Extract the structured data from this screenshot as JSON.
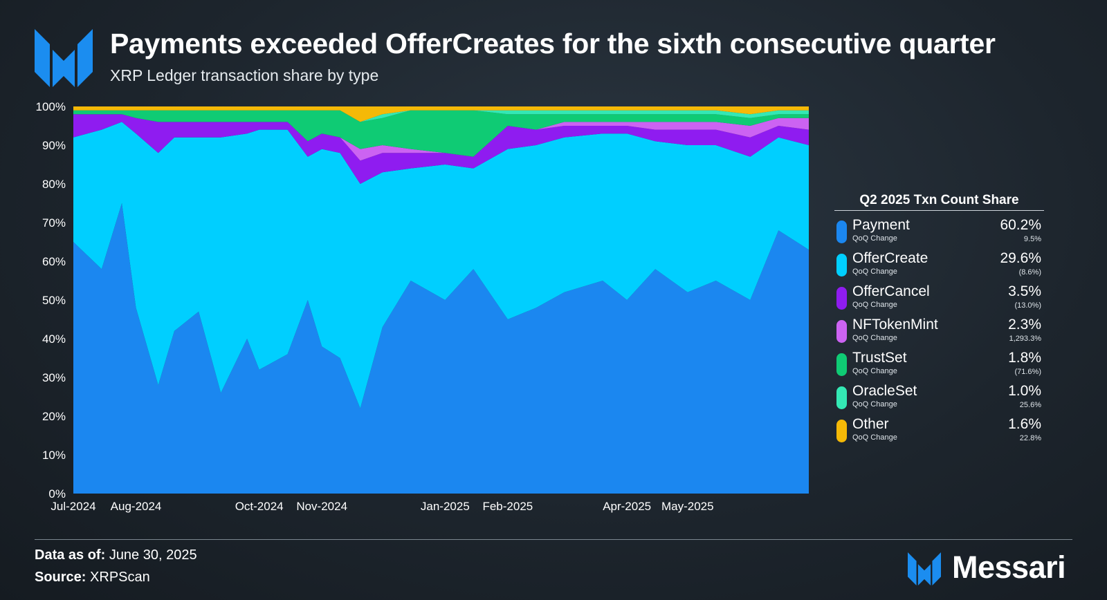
{
  "header": {
    "title": "Payments exceeded OfferCreates for the sixth consecutive quarter",
    "subtitle": "XRP Ledger transaction share by type",
    "logo_icon": "messari-m-icon"
  },
  "legend": {
    "title": "Q2 2025 Txn Count Share",
    "change_label": "QoQ Change",
    "items": [
      {
        "name": "Payment",
        "value": "60.2%",
        "change": "9.5%",
        "color": "#1b87f0"
      },
      {
        "name": "OfferCreate",
        "value": "29.6%",
        "change": "(8.6%)",
        "color": "#00cfff"
      },
      {
        "name": "OfferCancel",
        "value": "3.5%",
        "change": "(13.0%)",
        "color": "#8f1cf0"
      },
      {
        "name": "NFTokenMint",
        "value": "2.3%",
        "change": "1,293.3%",
        "color": "#cc63f2"
      },
      {
        "name": "TrustSet",
        "value": "1.8%",
        "change": "(71.6%)",
        "color": "#0fcb74"
      },
      {
        "name": "OracleSet",
        "value": "1.0%",
        "change": "25.6%",
        "color": "#34e8b4"
      },
      {
        "name": "Other",
        "value": "1.6%",
        "change": "22.8%",
        "color": "#f5b907"
      }
    ]
  },
  "footer": {
    "date_label": "Data as of:",
    "date_value": "June 30, 2025",
    "source_label": "Source:",
    "source_value": "XRPScan",
    "brand": "Messari"
  },
  "chart_data": {
    "type": "area",
    "stacked": true,
    "normalized": true,
    "x_range": [
      "2024-07-01",
      "2025-06-30"
    ],
    "ylim": [
      0,
      100
    ],
    "yticks": [
      "0%",
      "10%",
      "20%",
      "30%",
      "40%",
      "50%",
      "60%",
      "70%",
      "80%",
      "90%",
      "100%"
    ],
    "xticks": [
      {
        "date": "2024-07-01",
        "label": "Jul-2024"
      },
      {
        "date": "2024-08-01",
        "label": "Aug-2024"
      },
      {
        "date": "2024-10-01",
        "label": "Oct-2024"
      },
      {
        "date": "2024-11-01",
        "label": "Nov-2024"
      },
      {
        "date": "2025-01-01",
        "label": "Jan-2025"
      },
      {
        "date": "2025-02-01",
        "label": "Feb-2025"
      },
      {
        "date": "2025-04-01",
        "label": "Apr-2025"
      },
      {
        "date": "2025-05-01",
        "label": "May-2025"
      }
    ],
    "series_order": [
      "Payment",
      "OfferCreate",
      "OfferCancel",
      "NFTokenMint",
      "TrustSet",
      "OracleSet",
      "Other"
    ],
    "points": [
      {
        "date": "2024-07-01",
        "Payment": 65,
        "OfferCreate": 27,
        "OfferCancel": 6,
        "NFTokenMint": 0,
        "TrustSet": 1,
        "OracleSet": 0,
        "Other": 1
      },
      {
        "date": "2024-07-15",
        "Payment": 58,
        "OfferCreate": 36,
        "OfferCancel": 4,
        "NFTokenMint": 0,
        "TrustSet": 1,
        "OracleSet": 0,
        "Other": 1
      },
      {
        "date": "2024-07-25",
        "Payment": 75,
        "OfferCreate": 21,
        "OfferCancel": 2,
        "NFTokenMint": 0,
        "TrustSet": 1,
        "OracleSet": 0,
        "Other": 1
      },
      {
        "date": "2024-08-01",
        "Payment": 48,
        "OfferCreate": 45,
        "OfferCancel": 4,
        "NFTokenMint": 0,
        "TrustSet": 2,
        "OracleSet": 0,
        "Other": 1
      },
      {
        "date": "2024-08-12",
        "Payment": 28,
        "OfferCreate": 60,
        "OfferCancel": 8,
        "NFTokenMint": 0,
        "TrustSet": 3,
        "OracleSet": 0,
        "Other": 1
      },
      {
        "date": "2024-08-20",
        "Payment": 42,
        "OfferCreate": 50,
        "OfferCancel": 4,
        "NFTokenMint": 0,
        "TrustSet": 3,
        "OracleSet": 0,
        "Other": 1
      },
      {
        "date": "2024-09-01",
        "Payment": 47,
        "OfferCreate": 45,
        "OfferCancel": 4,
        "NFTokenMint": 0,
        "TrustSet": 3,
        "OracleSet": 0,
        "Other": 1
      },
      {
        "date": "2024-09-12",
        "Payment": 26,
        "OfferCreate": 66,
        "OfferCancel": 4,
        "NFTokenMint": 0,
        "TrustSet": 3,
        "OracleSet": 0,
        "Other": 1
      },
      {
        "date": "2024-09-25",
        "Payment": 40,
        "OfferCreate": 53,
        "OfferCancel": 3,
        "NFTokenMint": 0,
        "TrustSet": 3,
        "OracleSet": 0,
        "Other": 1
      },
      {
        "date": "2024-10-01",
        "Payment": 32,
        "OfferCreate": 62,
        "OfferCancel": 2,
        "NFTokenMint": 0,
        "TrustSet": 3,
        "OracleSet": 0,
        "Other": 1
      },
      {
        "date": "2024-10-15",
        "Payment": 36,
        "OfferCreate": 58,
        "OfferCancel": 2,
        "NFTokenMint": 0,
        "TrustSet": 3,
        "OracleSet": 0,
        "Other": 1
      },
      {
        "date": "2024-10-25",
        "Payment": 50,
        "OfferCreate": 37,
        "OfferCancel": 4,
        "NFTokenMint": 0,
        "TrustSet": 8,
        "OracleSet": 0,
        "Other": 1
      },
      {
        "date": "2024-11-01",
        "Payment": 38,
        "OfferCreate": 51,
        "OfferCancel": 4,
        "NFTokenMint": 0,
        "TrustSet": 6,
        "OracleSet": 0,
        "Other": 1
      },
      {
        "date": "2024-11-10",
        "Payment": 35,
        "OfferCreate": 53,
        "OfferCancel": 4,
        "NFTokenMint": 0,
        "TrustSet": 7,
        "OracleSet": 0,
        "Other": 1
      },
      {
        "date": "2024-11-20",
        "Payment": 22,
        "OfferCreate": 58,
        "OfferCancel": 6,
        "NFTokenMint": 3,
        "TrustSet": 7,
        "OracleSet": 0,
        "Other": 4
      },
      {
        "date": "2024-12-01",
        "Payment": 43,
        "OfferCreate": 40,
        "OfferCancel": 5,
        "NFTokenMint": 2,
        "TrustSet": 7,
        "OracleSet": 1,
        "Other": 2
      },
      {
        "date": "2024-12-15",
        "Payment": 55,
        "OfferCreate": 29,
        "OfferCancel": 4,
        "NFTokenMint": 1,
        "TrustSet": 10,
        "OracleSet": 0,
        "Other": 1
      },
      {
        "date": "2025-01-01",
        "Payment": 50,
        "OfferCreate": 35,
        "OfferCancel": 3,
        "NFTokenMint": 0,
        "TrustSet": 11,
        "OracleSet": 0,
        "Other": 1
      },
      {
        "date": "2025-01-15",
        "Payment": 58,
        "OfferCreate": 26,
        "OfferCancel": 3,
        "NFTokenMint": 0,
        "TrustSet": 12,
        "OracleSet": 0,
        "Other": 1
      },
      {
        "date": "2025-02-01",
        "Payment": 45,
        "OfferCreate": 44,
        "OfferCancel": 6,
        "NFTokenMint": 0,
        "TrustSet": 3,
        "OracleSet": 1,
        "Other": 1
      },
      {
        "date": "2025-02-15",
        "Payment": 48,
        "OfferCreate": 42,
        "OfferCancel": 4,
        "NFTokenMint": 0,
        "TrustSet": 4,
        "OracleSet": 1,
        "Other": 1
      },
      {
        "date": "2025-03-01",
        "Payment": 52,
        "OfferCreate": 40,
        "OfferCancel": 3,
        "NFTokenMint": 1,
        "TrustSet": 2,
        "OracleSet": 1,
        "Other": 1
      },
      {
        "date": "2025-03-20",
        "Payment": 55,
        "OfferCreate": 38,
        "OfferCancel": 2,
        "NFTokenMint": 1,
        "TrustSet": 2,
        "OracleSet": 1,
        "Other": 1
      },
      {
        "date": "2025-04-01",
        "Payment": 50,
        "OfferCreate": 43,
        "OfferCancel": 2,
        "NFTokenMint": 1,
        "TrustSet": 2,
        "OracleSet": 1,
        "Other": 1
      },
      {
        "date": "2025-04-15",
        "Payment": 58,
        "OfferCreate": 33,
        "OfferCancel": 3,
        "NFTokenMint": 2,
        "TrustSet": 2,
        "OracleSet": 1,
        "Other": 1
      },
      {
        "date": "2025-05-01",
        "Payment": 52,
        "OfferCreate": 38,
        "OfferCancel": 4,
        "NFTokenMint": 2,
        "TrustSet": 2,
        "OracleSet": 1,
        "Other": 1
      },
      {
        "date": "2025-05-15",
        "Payment": 55,
        "OfferCreate": 35,
        "OfferCancel": 4,
        "NFTokenMint": 2,
        "TrustSet": 2,
        "OracleSet": 1,
        "Other": 1
      },
      {
        "date": "2025-06-01",
        "Payment": 50,
        "OfferCreate": 37,
        "OfferCancel": 5,
        "NFTokenMint": 3,
        "TrustSet": 2,
        "OracleSet": 1,
        "Other": 2
      },
      {
        "date": "2025-06-15",
        "Payment": 68,
        "OfferCreate": 24,
        "OfferCancel": 3,
        "NFTokenMint": 2,
        "TrustSet": 1,
        "OracleSet": 1,
        "Other": 1
      },
      {
        "date": "2025-06-30",
        "Payment": 63,
        "OfferCreate": 27,
        "OfferCancel": 4,
        "NFTokenMint": 3,
        "TrustSet": 1,
        "OracleSet": 1,
        "Other": 1
      }
    ]
  }
}
